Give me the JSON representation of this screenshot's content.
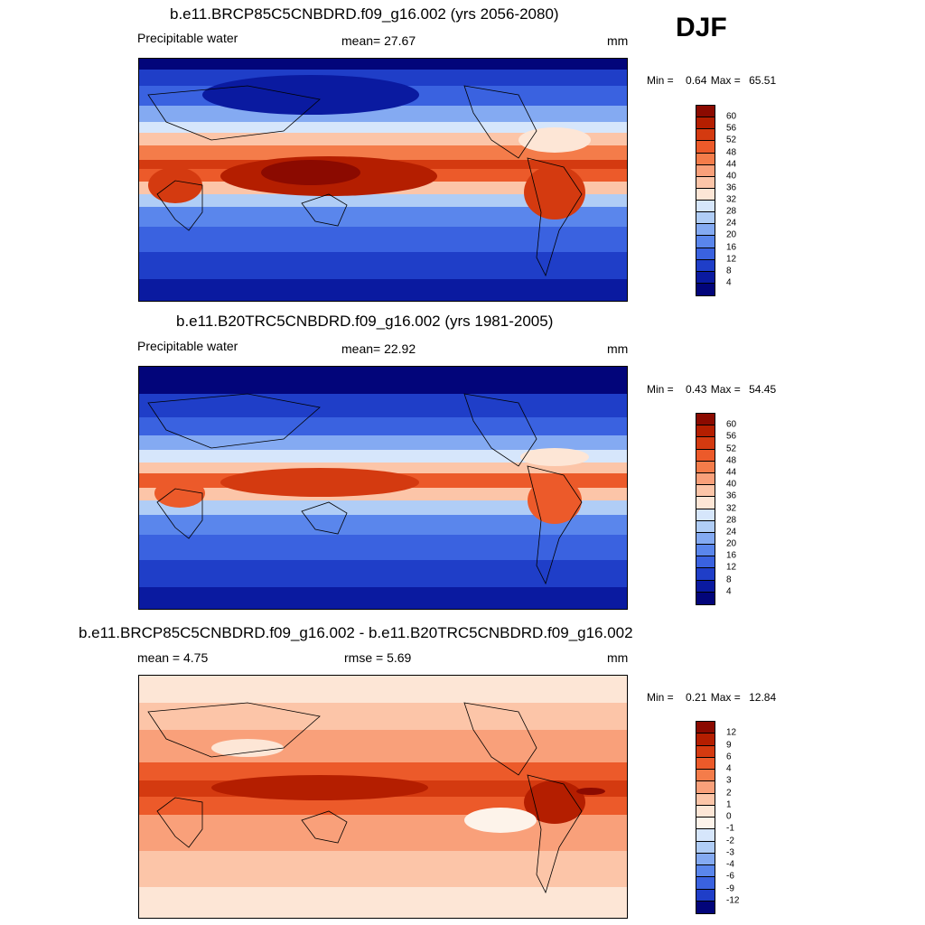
{
  "season": "DJF",
  "panels": [
    {
      "title": "b.e11.BRCP85C5CNBDRD.f09_g16.002 (yrs 2056-2080)",
      "left_label": "Precipitable water",
      "center_label": "mean=  27.67",
      "units": "mm",
      "min_label": "Min =",
      "min_value": "0.64",
      "max_label": "Max =",
      "max_value": "65.51",
      "colorbar_labels": [
        "60",
        "56",
        "52",
        "48",
        "44",
        "40",
        "36",
        "32",
        "28",
        "24",
        "20",
        "16",
        "12",
        "8",
        "4"
      ]
    },
    {
      "title": "b.e11.B20TRC5CNBDRD.f09_g16.002 (yrs 1981-2005)",
      "left_label": "Precipitable water",
      "center_label": "mean=  22.92",
      "units": "mm",
      "min_label": "Min =",
      "min_value": "0.43",
      "max_label": "Max =",
      "max_value": "54.45",
      "colorbar_labels": [
        "60",
        "56",
        "52",
        "48",
        "44",
        "40",
        "36",
        "32",
        "28",
        "24",
        "20",
        "16",
        "12",
        "8",
        "4"
      ]
    },
    {
      "title": "b.e11.BRCP85C5CNBDRD.f09_g16.002 - b.e11.B20TRC5CNBDRD.f09_g16.002",
      "left_label": "mean =   4.75",
      "center_label": "rmse =   5.69",
      "units": "mm",
      "min_label": "Min =",
      "min_value": "0.21",
      "max_label": "Max =",
      "max_value": "12.84",
      "colorbar_labels": [
        "12",
        "9",
        "6",
        "4",
        "3",
        "2",
        "1",
        "0",
        "-1",
        "-2",
        "-3",
        "-4",
        "-6",
        "-9",
        "-12"
      ]
    }
  ],
  "colors": {
    "seq": [
      "#8b0a00",
      "#b41e00",
      "#d43a10",
      "#ec5a2a",
      "#f47c4a",
      "#f9a07a",
      "#fcc5a8",
      "#fde6d6",
      "#d6e6fb",
      "#b0cdf6",
      "#84aaf2",
      "#5a86ec",
      "#3a62e0",
      "#1f3ec8",
      "#0a1aa0",
      "#02057a"
    ],
    "diff": [
      "#8b0a00",
      "#b41e00",
      "#d43a10",
      "#ec5a2a",
      "#f47c4a",
      "#f9a07a",
      "#fcc5a8",
      "#fde6d6",
      "#fdf3ea",
      "#d6e6fb",
      "#b0cdf6",
      "#84aaf2",
      "#5a86ec",
      "#3a62e0",
      "#1f3ec8",
      "#02057a"
    ]
  }
}
